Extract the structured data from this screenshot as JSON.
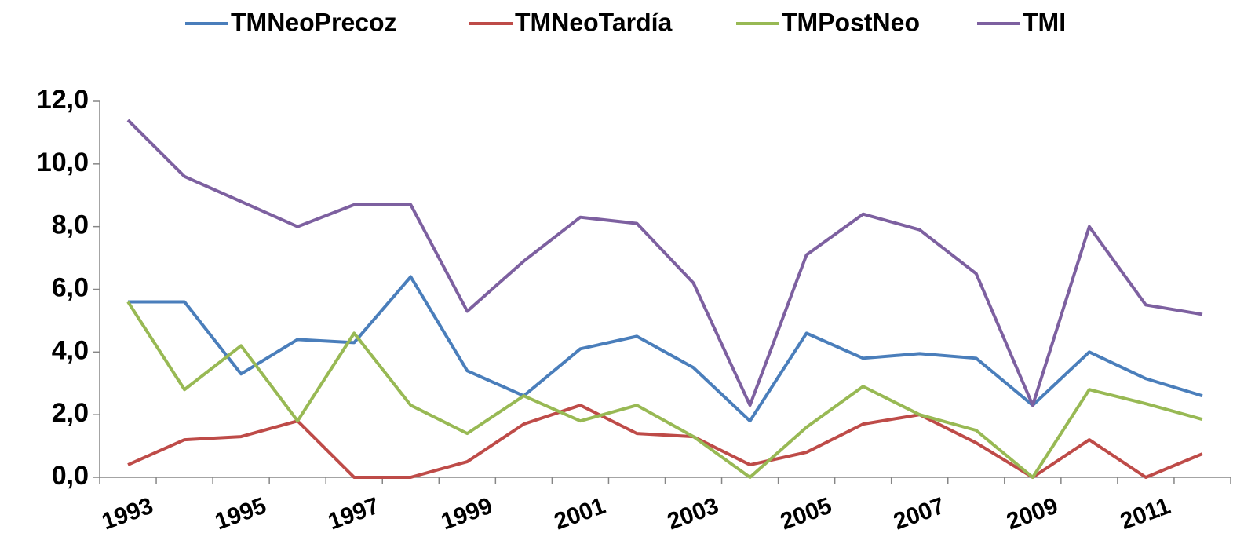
{
  "chart_data": {
    "type": "line",
    "categories": [
      "1993",
      null,
      "1995",
      null,
      "1997",
      null,
      "1999",
      null,
      "2001",
      null,
      "2003",
      null,
      "2005",
      null,
      "2007",
      null,
      "2009",
      null,
      "2011",
      null
    ],
    "series": [
      {
        "name": "TMNeoPrecoz",
        "color": "#4a7ebb",
        "values": [
          5.6,
          5.6,
          3.3,
          4.4,
          4.3,
          6.4,
          3.4,
          2.6,
          4.1,
          4.5,
          3.5,
          1.8,
          4.6,
          3.8,
          3.95,
          3.8,
          2.3,
          4.0,
          3.15,
          2.6
        ]
      },
      {
        "name": "TMNeoTardía",
        "color": "#be4b48",
        "values": [
          0.4,
          1.2,
          1.3,
          1.8,
          0.0,
          0.0,
          0.5,
          1.7,
          2.3,
          1.4,
          1.3,
          0.4,
          0.8,
          1.7,
          2.0,
          1.1,
          0.0,
          1.2,
          0.0,
          0.75
        ]
      },
      {
        "name": "TMPostNeo",
        "color": "#98b954",
        "values": [
          5.6,
          2.8,
          4.2,
          1.8,
          4.6,
          2.3,
          1.4,
          2.6,
          1.8,
          2.3,
          1.3,
          0.0,
          1.6,
          2.9,
          2.0,
          1.5,
          0.0,
          2.8,
          2.35,
          1.85
        ]
      },
      {
        "name": "TMI",
        "color": "#7d60a0",
        "values": [
          11.4,
          9.6,
          8.8,
          8.0,
          8.7,
          8.7,
          5.3,
          6.9,
          8.3,
          8.1,
          6.2,
          2.3,
          7.1,
          8.4,
          7.9,
          6.5,
          2.3,
          8.0,
          5.5,
          5.2
        ]
      }
    ],
    "ylim": [
      0,
      12
    ],
    "yticks": [
      {
        "value": 0,
        "label": "0,0"
      },
      {
        "value": 2,
        "label": "2,0"
      },
      {
        "value": 4,
        "label": "4,0"
      },
      {
        "value": 6,
        "label": "6,0"
      },
      {
        "value": 8,
        "label": "8,0"
      },
      {
        "value": 10,
        "label": "10,0"
      },
      {
        "value": 12,
        "label": "12,0"
      }
    ],
    "legend": "top",
    "grid": false
  }
}
